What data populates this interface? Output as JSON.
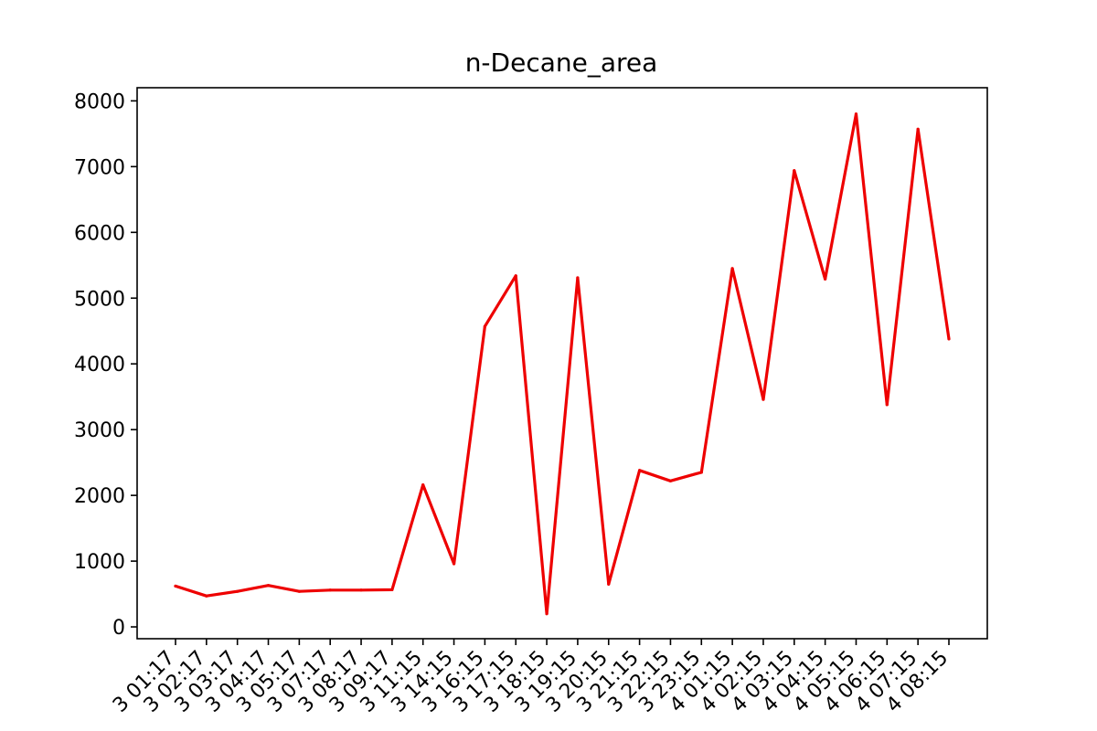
{
  "chart_data": {
    "type": "line",
    "title": "n-Decane_area",
    "xlabel": "",
    "ylabel": "",
    "ylim": [
      -180,
      8200
    ],
    "yticks": [
      0,
      1000,
      2000,
      3000,
      4000,
      5000,
      6000,
      7000,
      8000
    ],
    "grid": false,
    "line_color": "#ee0000",
    "categories": [
      "3 01:17",
      "3 02:17",
      "3 03:17",
      "3 04:17",
      "3 05:17",
      "3 07:17",
      "3 08:17",
      "3 09:17",
      "3 11:15",
      "3 14:15",
      "3 16:15",
      "3 17:15",
      "3 18:15",
      "3 19:15",
      "3 20:15",
      "3 21:15",
      "3 22:15",
      "3 23:15",
      "4 01:15",
      "4 02:15",
      "4 03:15",
      "4 04:15",
      "4 05:15",
      "4 06:15",
      "4 07:15",
      "4 08:15"
    ],
    "values": [
      620,
      470,
      540,
      630,
      540,
      560,
      560,
      565,
      2160,
      960,
      4570,
      5340,
      200,
      5310,
      650,
      2380,
      2220,
      2350,
      5450,
      3460,
      6940,
      5290,
      7800,
      3380,
      7570,
      4380
    ]
  }
}
